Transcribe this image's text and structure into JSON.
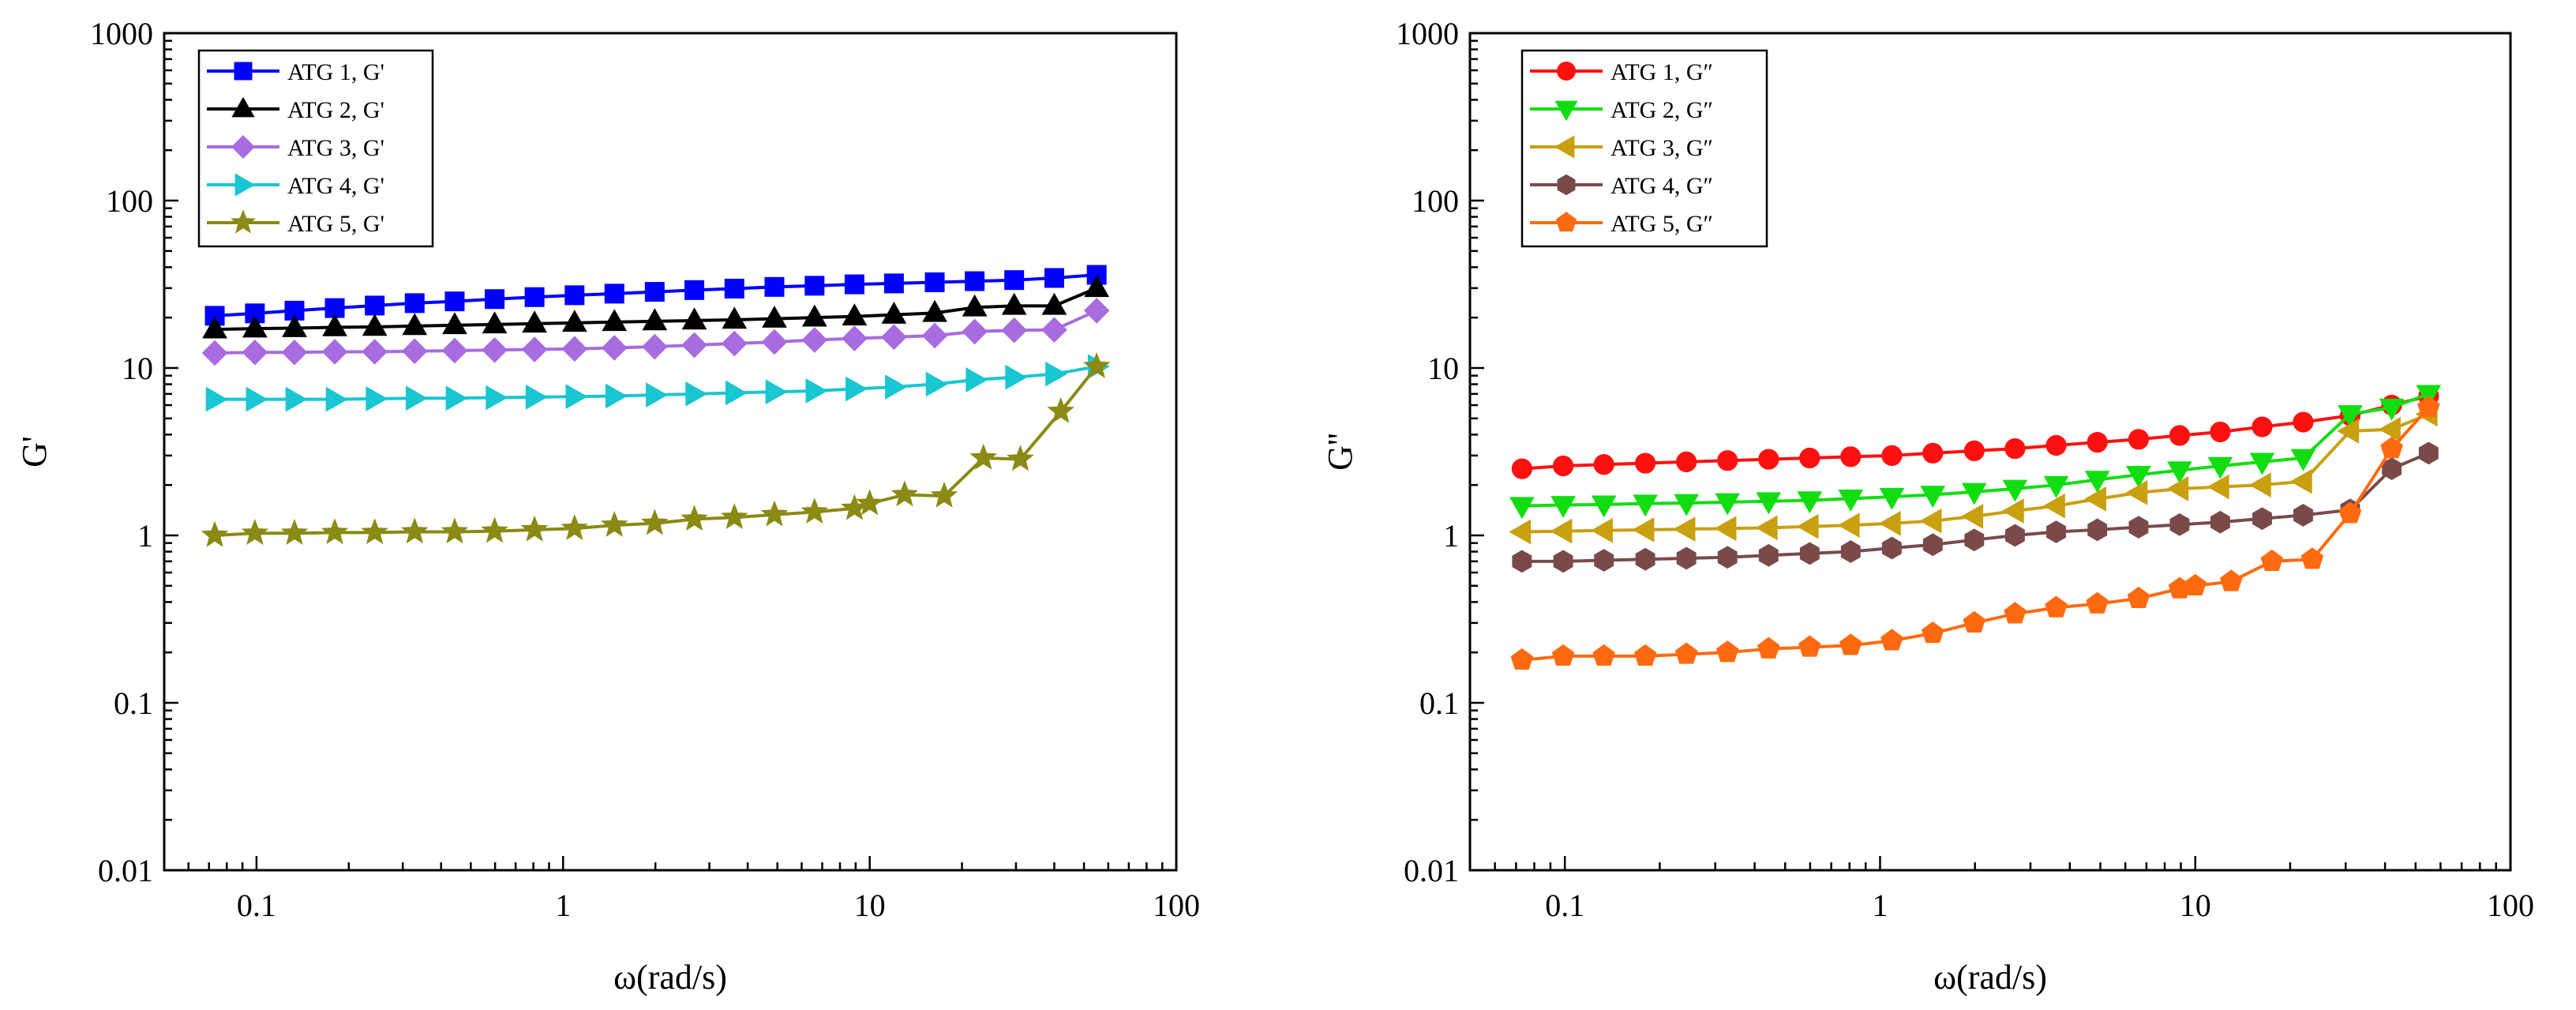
{
  "chart_data": [
    {
      "type": "line",
      "id": "left",
      "xlabel": "ω(rad/s)",
      "ylabel": "G'",
      "xscale": "log",
      "yscale": "log",
      "xlim": [
        0.05,
        100
      ],
      "ylim": [
        0.01,
        1000
      ],
      "xticks": [
        "0.1",
        "1",
        "10",
        "100"
      ],
      "yticks": [
        "0.01",
        "0.1",
        "1",
        "10",
        "100",
        "1000"
      ],
      "legend_position": "top-left",
      "x": [
        0.0731,
        0.0988,
        0.133,
        0.18,
        0.243,
        0.328,
        0.443,
        0.598,
        0.807,
        1.09,
        1.47,
        1.99,
        2.68,
        3.62,
        4.89,
        6.61,
        8.92,
        12.0,
        16.3,
        22.0,
        29.6,
        40.0,
        55.0
      ],
      "series": [
        {
          "name": "ATG 1, G'",
          "color": "#0000ff",
          "marker": "square",
          "values": [
            20.5,
            21.2,
            22.0,
            22.8,
            23.6,
            24.4,
            25.0,
            25.8,
            26.5,
            27.2,
            27.8,
            28.5,
            29.2,
            29.8,
            30.5,
            31.0,
            31.6,
            32.0,
            32.5,
            33.0,
            33.5,
            34.5,
            36.0
          ]
        },
        {
          "name": "ATG 2, G'",
          "color": "#000000",
          "marker": "triangle-up",
          "values": [
            17.0,
            17.2,
            17.3,
            17.5,
            17.6,
            17.8,
            18.0,
            18.2,
            18.4,
            18.6,
            18.8,
            19.0,
            19.2,
            19.4,
            19.7,
            20.0,
            20.3,
            20.8,
            21.3,
            23.0,
            23.5,
            23.5,
            30.0
          ]
        },
        {
          "name": "ATG 3, G'",
          "color": "#a86be0",
          "marker": "diamond",
          "values": [
            12.3,
            12.4,
            12.4,
            12.5,
            12.5,
            12.6,
            12.7,
            12.8,
            12.9,
            13.0,
            13.2,
            13.4,
            13.7,
            14.0,
            14.3,
            14.7,
            15.0,
            15.3,
            15.6,
            16.5,
            16.8,
            16.9,
            22.0
          ]
        },
        {
          "name": "ATG 4, G'",
          "color": "#19c6d2",
          "marker": "triangle-right",
          "values": [
            6.5,
            6.5,
            6.5,
            6.5,
            6.55,
            6.6,
            6.6,
            6.65,
            6.7,
            6.75,
            6.8,
            6.9,
            7.0,
            7.1,
            7.2,
            7.3,
            7.5,
            7.7,
            8.0,
            8.5,
            8.8,
            9.2,
            10.2
          ]
        },
        {
          "name": "ATG 5, G'",
          "color": "#8a8a14",
          "marker": "star",
          "values": [
            1.0,
            1.03,
            1.03,
            1.04,
            1.04,
            1.05,
            1.05,
            1.06,
            1.08,
            1.1,
            1.15,
            1.18,
            1.25,
            1.28,
            1.33,
            1.38,
            1.45,
            1.55,
            1.75,
            1.72,
            2.9,
            2.85,
            5.5,
            10.2
          ],
          "x": [
            0.0731,
            0.0988,
            0.133,
            0.18,
            0.243,
            0.328,
            0.443,
            0.598,
            0.807,
            1.09,
            1.47,
            1.99,
            2.68,
            3.62,
            4.89,
            6.61,
            8.92,
            10.0,
            13.0,
            17.5,
            23.5,
            31.0,
            42.0,
            55.0
          ]
        }
      ]
    },
    {
      "type": "line",
      "id": "right",
      "xlabel": "ω(rad/s)",
      "ylabel": "G''",
      "xscale": "log",
      "yscale": "log",
      "xlim": [
        0.05,
        100
      ],
      "ylim": [
        0.01,
        1000
      ],
      "xticks": [
        "0.1",
        "1",
        "10",
        "100"
      ],
      "yticks": [
        "0.01",
        "0.1",
        "1",
        "10",
        "100",
        "1000"
      ],
      "legend_position": "top-left",
      "x": [
        0.0731,
        0.0988,
        0.133,
        0.18,
        0.243,
        0.328,
        0.443,
        0.598,
        0.807,
        1.09,
        1.47,
        1.99,
        2.68,
        3.62,
        4.89,
        6.61,
        8.92,
        12.0,
        16.3,
        22.0,
        31.0,
        42.0,
        55.0
      ],
      "series": [
        {
          "name": "ATG 1, G″",
          "color": "#ff1010",
          "marker": "circle",
          "values": [
            2.5,
            2.6,
            2.65,
            2.7,
            2.75,
            2.8,
            2.85,
            2.9,
            2.95,
            3.0,
            3.1,
            3.2,
            3.3,
            3.45,
            3.6,
            3.75,
            3.95,
            4.15,
            4.45,
            4.75,
            5.2,
            6.0,
            6.8
          ]
        },
        {
          "name": "ATG 2, G″",
          "color": "#11dd11",
          "marker": "triangle-down",
          "values": [
            1.5,
            1.52,
            1.53,
            1.55,
            1.56,
            1.58,
            1.6,
            1.62,
            1.66,
            1.7,
            1.75,
            1.82,
            1.9,
            2.0,
            2.15,
            2.3,
            2.45,
            2.6,
            2.75,
            2.9,
            5.3,
            5.8,
            7.0
          ]
        },
        {
          "name": "ATG 3, G″",
          "color": "#c8a010",
          "marker": "triangle-left",
          "values": [
            1.05,
            1.06,
            1.07,
            1.08,
            1.09,
            1.1,
            1.11,
            1.13,
            1.15,
            1.18,
            1.22,
            1.3,
            1.4,
            1.5,
            1.65,
            1.8,
            1.9,
            1.95,
            2.0,
            2.1,
            4.2,
            4.3,
            5.3
          ]
        },
        {
          "name": "ATG 4, G″",
          "color": "#7a4a4a",
          "marker": "hexagon",
          "values": [
            0.7,
            0.7,
            0.71,
            0.72,
            0.73,
            0.74,
            0.76,
            0.78,
            0.8,
            0.84,
            0.88,
            0.94,
            1.0,
            1.05,
            1.08,
            1.12,
            1.16,
            1.2,
            1.26,
            1.32,
            1.42,
            2.5,
            3.1
          ]
        },
        {
          "name": "ATG 5, G″",
          "color": "#ff6a10",
          "marker": "pentagon",
          "values": [
            0.18,
            0.19,
            0.19,
            0.19,
            0.195,
            0.2,
            0.21,
            0.215,
            0.22,
            0.235,
            0.26,
            0.3,
            0.34,
            0.37,
            0.39,
            0.42,
            0.48,
            0.5,
            0.53,
            0.7,
            0.72,
            1.35,
            3.3,
            5.8
          ],
          "x": [
            0.0731,
            0.0988,
            0.133,
            0.18,
            0.243,
            0.328,
            0.443,
            0.598,
            0.807,
            1.09,
            1.47,
            1.99,
            2.68,
            3.62,
            4.89,
            6.61,
            8.92,
            10.0,
            13.0,
            17.5,
            23.5,
            31.0,
            42.0,
            55.0
          ]
        }
      ]
    }
  ]
}
